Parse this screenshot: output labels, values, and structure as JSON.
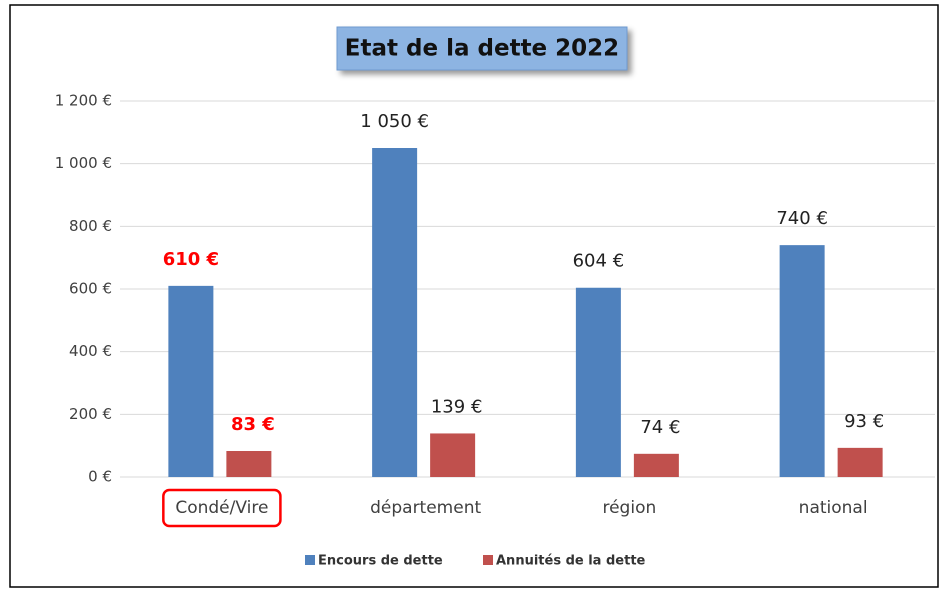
{
  "chart_data": {
    "type": "bar",
    "title": "Etat de la dette 2022",
    "categories": [
      "Condé/Vire",
      "département",
      "région",
      "national"
    ],
    "series": [
      {
        "name": "Encours de dette",
        "color": "#4f81bd",
        "values": [
          610,
          1050,
          604,
          740
        ],
        "value_labels": [
          "610 €",
          "1 050 €",
          "604 €",
          "740 €"
        ]
      },
      {
        "name": "Annuités de la dette",
        "color": "#c0504d",
        "values": [
          83,
          139,
          74,
          93
        ],
        "value_labels": [
          "83 €",
          "139 €",
          "74 €",
          "93 €"
        ]
      }
    ],
    "ylim": [
      0,
      1200
    ],
    "yticks": [
      {
        "value": 0,
        "label": "0 €"
      },
      {
        "value": 200,
        "label": "200 €"
      },
      {
        "value": 400,
        "label": "400 €"
      },
      {
        "value": 600,
        "label": "600 €"
      },
      {
        "value": 800,
        "label": "800 €"
      },
      {
        "value": 1000,
        "label": "1 000 €"
      },
      {
        "value": 1200,
        "label": "1 200 €"
      }
    ],
    "grid": true,
    "legend": "bottom",
    "highlight": {
      "category": "Condé/Vire",
      "color": "#ff0000"
    }
  }
}
